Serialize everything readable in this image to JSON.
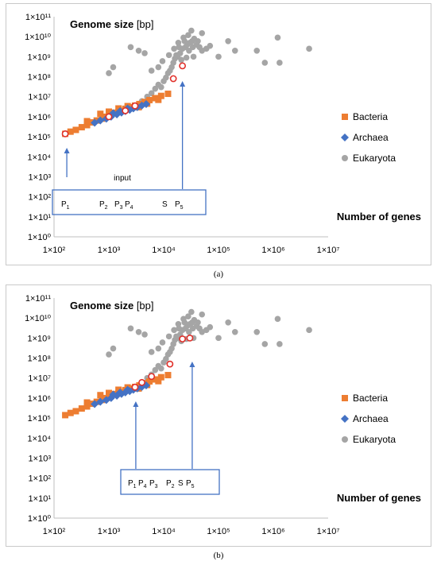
{
  "chart_data": [
    {
      "panel": "(a)",
      "type": "scatter",
      "title_bold": "Genome size",
      "title_unit": " [bp]",
      "xlabel": "Number of genes",
      "xscale": "log",
      "yscale": "log",
      "xlim": [
        100,
        10000000
      ],
      "ylim": [
        1,
        100000000000
      ],
      "x_ticks": [
        "1×10²",
        "1×10³",
        "1×10⁴",
        "1×10⁵",
        "1×10⁶",
        "1×10⁷"
      ],
      "y_ticks": [
        "1×10⁰",
        "1×10¹",
        "1×10²",
        "1×10³",
        "1×10⁴",
        "1×10⁵",
        "1×10⁶",
        "1×10⁷",
        "1×10⁸",
        "1×10⁹",
        "1×10¹⁰",
        "1×10¹¹"
      ],
      "grid": false,
      "legend_position": "right",
      "legend": [
        {
          "name": "Bacteria",
          "color": "#ED7D31",
          "marker": "square"
        },
        {
          "name": "Archaea",
          "color": "#4472C4",
          "marker": "diamond"
        },
        {
          "name": "Eukaryota",
          "color": "#A5A5A5",
          "marker": "circle"
        }
      ],
      "series": [
        {
          "name": "Bacteria",
          "points": [
            [
              160,
              140000
            ],
            [
              200,
              180000
            ],
            [
              250,
              220000
            ],
            [
              320,
              300000
            ],
            [
              400,
              380000
            ],
            [
              500,
              520000
            ],
            [
              600,
              650000
            ],
            [
              750,
              800000
            ],
            [
              900,
              1000000
            ],
            [
              1100,
              1300000
            ],
            [
              1300,
              1600000
            ],
            [
              1600,
              2000000
            ],
            [
              2000,
              2500000
            ],
            [
              2500,
              3000000
            ],
            [
              3000,
              3600000
            ],
            [
              3600,
              4300000
            ],
            [
              4500,
              5500000
            ],
            [
              5500,
              6800000
            ],
            [
              7000,
              8500000
            ],
            [
              9000,
              11000000
            ],
            [
              12000,
              14000000
            ],
            [
              700,
              1400000
            ],
            [
              1000,
              1800000
            ],
            [
              1500,
              2600000
            ],
            [
              2200,
              3400000
            ],
            [
              400,
              600000
            ],
            [
              3500,
              3000000
            ],
            [
              5000,
              4500000
            ],
            [
              8000,
              7000000
            ]
          ]
        },
        {
          "name": "Archaea",
          "points": [
            [
              550,
              500000
            ],
            [
              700,
              650000
            ],
            [
              900,
              800000
            ],
            [
              1100,
              1000000
            ],
            [
              1400,
              1300000
            ],
            [
              1700,
              1600000
            ],
            [
              2000,
              1900000
            ],
            [
              2400,
              2200000
            ],
            [
              2800,
              2600000
            ],
            [
              3300,
              3000000
            ],
            [
              4000,
              3600000
            ],
            [
              4800,
              4300000
            ],
            [
              1200,
              1500000
            ],
            [
              1600,
              1900000
            ],
            [
              2200,
              2600000
            ]
          ]
        },
        {
          "name": "Eukaryota",
          "points": [
            [
              3000,
              3000000
            ],
            [
              4000,
              6000000
            ],
            [
              5000,
              10000000
            ],
            [
              6000,
              15000000
            ],
            [
              7000,
              25000000
            ],
            [
              8000,
              40000000
            ],
            [
              9000,
              30000000
            ],
            [
              10000,
              60000000
            ],
            [
              11000,
              90000000
            ],
            [
              12000,
              150000000
            ],
            [
              13000,
              200000000
            ],
            [
              14000,
              300000000
            ],
            [
              15000,
              500000000
            ],
            [
              16000,
              800000000
            ],
            [
              18000,
              1000000000
            ],
            [
              20000,
              1500000000
            ],
            [
              22000,
              2500000000
            ],
            [
              25000,
              3000000000
            ],
            [
              27000,
              4000000000
            ],
            [
              30000,
              5000000000
            ],
            [
              33000,
              6000000000
            ],
            [
              36000,
              8000000000
            ],
            [
              40000,
              4000000000
            ],
            [
              45000,
              3000000000
            ],
            [
              50000,
              2000000000
            ],
            [
              28000,
              12000000000
            ],
            [
              32000,
              20000000000
            ],
            [
              24000,
              6000000000
            ],
            [
              19000,
              3000000000
            ],
            [
              17000,
              1200000000
            ],
            [
              21000,
              700000000
            ],
            [
              26000,
              900000000
            ],
            [
              35000,
              1000000000
            ],
            [
              60000,
              2500000000
            ],
            [
              70000,
              3500000000
            ],
            [
              1000,
              150000000
            ],
            [
              1200,
              300000000
            ],
            [
              2500,
              3000000000
            ],
            [
              3500,
              2000000000
            ],
            [
              4500,
              1500000000
            ],
            [
              50000,
              15000000000
            ],
            [
              100000,
              1000000000
            ],
            [
              150000,
              6000000000
            ],
            [
              200000,
              2000000000
            ],
            [
              500000,
              2000000000
            ],
            [
              700000,
              500000000
            ],
            [
              1200000,
              9000000000
            ],
            [
              1300000,
              500000000
            ],
            [
              4500000,
              2500000000
            ],
            [
              8000,
              300000000
            ],
            [
              6000,
              200000000
            ],
            [
              9500,
              600000000
            ],
            [
              12500,
              1200000000
            ],
            [
              15500,
              2500000000
            ],
            [
              18500,
              5000000000
            ],
            [
              23000,
              9000000000
            ],
            [
              29000,
              2000000000
            ],
            [
              34000,
              3000000000
            ],
            [
              42000,
              6000000000
            ]
          ]
        }
      ],
      "highlighted_points": [
        [
          160,
          140000
        ],
        [
          1000,
          1000000
        ],
        [
          2000,
          2000000
        ],
        [
          3000,
          3500000
        ],
        [
          15000,
          80000000
        ],
        [
          22000,
          350000000
        ]
      ],
      "annotation_box": {
        "label": "input",
        "items": [
          {
            "text": "P",
            "sub": "1"
          },
          {
            "text": "P",
            "sub": "2"
          },
          {
            "text": "P",
            "sub": "3"
          },
          {
            "text": "P",
            "sub": "4"
          },
          {
            "text": "S",
            "sub": ""
          },
          {
            "text": "P",
            "sub": "5"
          }
        ],
        "arrows_x": [
          160,
          22000
        ]
      }
    },
    {
      "panel": "(b)",
      "type": "scatter",
      "title_bold": "Genome size",
      "title_unit": " [bp]",
      "xlabel": "Number of genes",
      "xscale": "log",
      "yscale": "log",
      "xlim": [
        100,
        10000000
      ],
      "ylim": [
        1,
        100000000000
      ],
      "x_ticks": [
        "1×10²",
        "1×10³",
        "1×10⁴",
        "1×10⁵",
        "1×10⁶",
        "1×10⁷"
      ],
      "y_ticks": [
        "1×10⁰",
        "1×10¹",
        "1×10²",
        "1×10³",
        "1×10⁴",
        "1×10⁵",
        "1×10⁶",
        "1×10⁷",
        "1×10⁸",
        "1×10⁹",
        "1×10¹⁰",
        "1×10¹¹"
      ],
      "grid": false,
      "legend_position": "right",
      "legend": [
        {
          "name": "Bacteria",
          "color": "#ED7D31",
          "marker": "square"
        },
        {
          "name": "Archaea",
          "color": "#4472C4",
          "marker": "diamond"
        },
        {
          "name": "Eukaryota",
          "color": "#A5A5A5",
          "marker": "circle"
        }
      ],
      "series": [
        {
          "name": "Bacteria",
          "points": [
            [
              160,
              140000
            ],
            [
              200,
              180000
            ],
            [
              250,
              220000
            ],
            [
              320,
              300000
            ],
            [
              400,
              380000
            ],
            [
              500,
              520000
            ],
            [
              600,
              650000
            ],
            [
              750,
              800000
            ],
            [
              900,
              1000000
            ],
            [
              1100,
              1300000
            ],
            [
              1300,
              1600000
            ],
            [
              1600,
              2000000
            ],
            [
              2000,
              2500000
            ],
            [
              2500,
              3000000
            ],
            [
              3000,
              3600000
            ],
            [
              3600,
              4300000
            ],
            [
              4500,
              5500000
            ],
            [
              5500,
              6800000
            ],
            [
              7000,
              8500000
            ],
            [
              9000,
              11000000
            ],
            [
              12000,
              14000000
            ],
            [
              700,
              1400000
            ],
            [
              1000,
              1800000
            ],
            [
              1500,
              2600000
            ],
            [
              2200,
              3400000
            ],
            [
              400,
              600000
            ],
            [
              3500,
              3000000
            ],
            [
              5000,
              4500000
            ],
            [
              8000,
              7000000
            ]
          ]
        },
        {
          "name": "Archaea",
          "points": [
            [
              550,
              500000
            ],
            [
              700,
              650000
            ],
            [
              900,
              800000
            ],
            [
              1100,
              1000000
            ],
            [
              1400,
              1300000
            ],
            [
              1700,
              1600000
            ],
            [
              2000,
              1900000
            ],
            [
              2400,
              2200000
            ],
            [
              2800,
              2600000
            ],
            [
              3300,
              3000000
            ],
            [
              4000,
              3600000
            ],
            [
              4800,
              4300000
            ],
            [
              1200,
              1500000
            ],
            [
              1600,
              1900000
            ],
            [
              2200,
              2600000
            ]
          ]
        },
        {
          "name": "Eukaryota",
          "points": [
            [
              3000,
              3000000
            ],
            [
              4000,
              6000000
            ],
            [
              5000,
              10000000
            ],
            [
              6000,
              15000000
            ],
            [
              7000,
              25000000
            ],
            [
              8000,
              40000000
            ],
            [
              9000,
              30000000
            ],
            [
              10000,
              60000000
            ],
            [
              11000,
              90000000
            ],
            [
              12000,
              150000000
            ],
            [
              13000,
              200000000
            ],
            [
              14000,
              300000000
            ],
            [
              15000,
              500000000
            ],
            [
              16000,
              800000000
            ],
            [
              18000,
              1000000000
            ],
            [
              20000,
              1500000000
            ],
            [
              22000,
              2500000000
            ],
            [
              25000,
              3000000000
            ],
            [
              27000,
              4000000000
            ],
            [
              30000,
              5000000000
            ],
            [
              33000,
              6000000000
            ],
            [
              36000,
              8000000000
            ],
            [
              40000,
              4000000000
            ],
            [
              45000,
              3000000000
            ],
            [
              50000,
              2000000000
            ],
            [
              28000,
              12000000000
            ],
            [
              32000,
              20000000000
            ],
            [
              24000,
              6000000000
            ],
            [
              19000,
              3000000000
            ],
            [
              17000,
              1200000000
            ],
            [
              21000,
              700000000
            ],
            [
              26000,
              900000000
            ],
            [
              35000,
              1000000000
            ],
            [
              60000,
              2500000000
            ],
            [
              70000,
              3500000000
            ],
            [
              1000,
              150000000
            ],
            [
              1200,
              300000000
            ],
            [
              2500,
              3000000000
            ],
            [
              3500,
              2000000000
            ],
            [
              4500,
              1500000000
            ],
            [
              50000,
              15000000000
            ],
            [
              100000,
              1000000000
            ],
            [
              150000,
              6000000000
            ],
            [
              200000,
              2000000000
            ],
            [
              500000,
              2000000000
            ],
            [
              700000,
              500000000
            ],
            [
              1200000,
              9000000000
            ],
            [
              1300000,
              500000000
            ],
            [
              4500000,
              2500000000
            ],
            [
              8000,
              300000000
            ],
            [
              6000,
              200000000
            ],
            [
              9500,
              600000000
            ],
            [
              12500,
              1200000000
            ],
            [
              15500,
              2500000000
            ],
            [
              18500,
              5000000000
            ],
            [
              23000,
              9000000000
            ],
            [
              29000,
              2000000000
            ],
            [
              34000,
              3000000000
            ],
            [
              42000,
              6000000000
            ]
          ]
        }
      ],
      "highlighted_points": [
        [
          3000,
          3500000
        ],
        [
          4000,
          6000000
        ],
        [
          6000,
          12000000
        ],
        [
          13000,
          50000000
        ],
        [
          22000,
          900000000
        ],
        [
          30000,
          1000000000
        ]
      ],
      "annotation_box": {
        "label": "",
        "items": [
          {
            "text": "P",
            "sub": "1"
          },
          {
            "text": "P",
            "sub": "4"
          },
          {
            "text": "P",
            "sub": "3"
          },
          {
            "text": "P",
            "sub": "2"
          },
          {
            "text": "S",
            "sub": ""
          },
          {
            "text": "P",
            "sub": "5"
          }
        ],
        "arrows_x": [
          3000,
          30000
        ]
      }
    }
  ],
  "captions": [
    "(a)",
    "(b)"
  ]
}
